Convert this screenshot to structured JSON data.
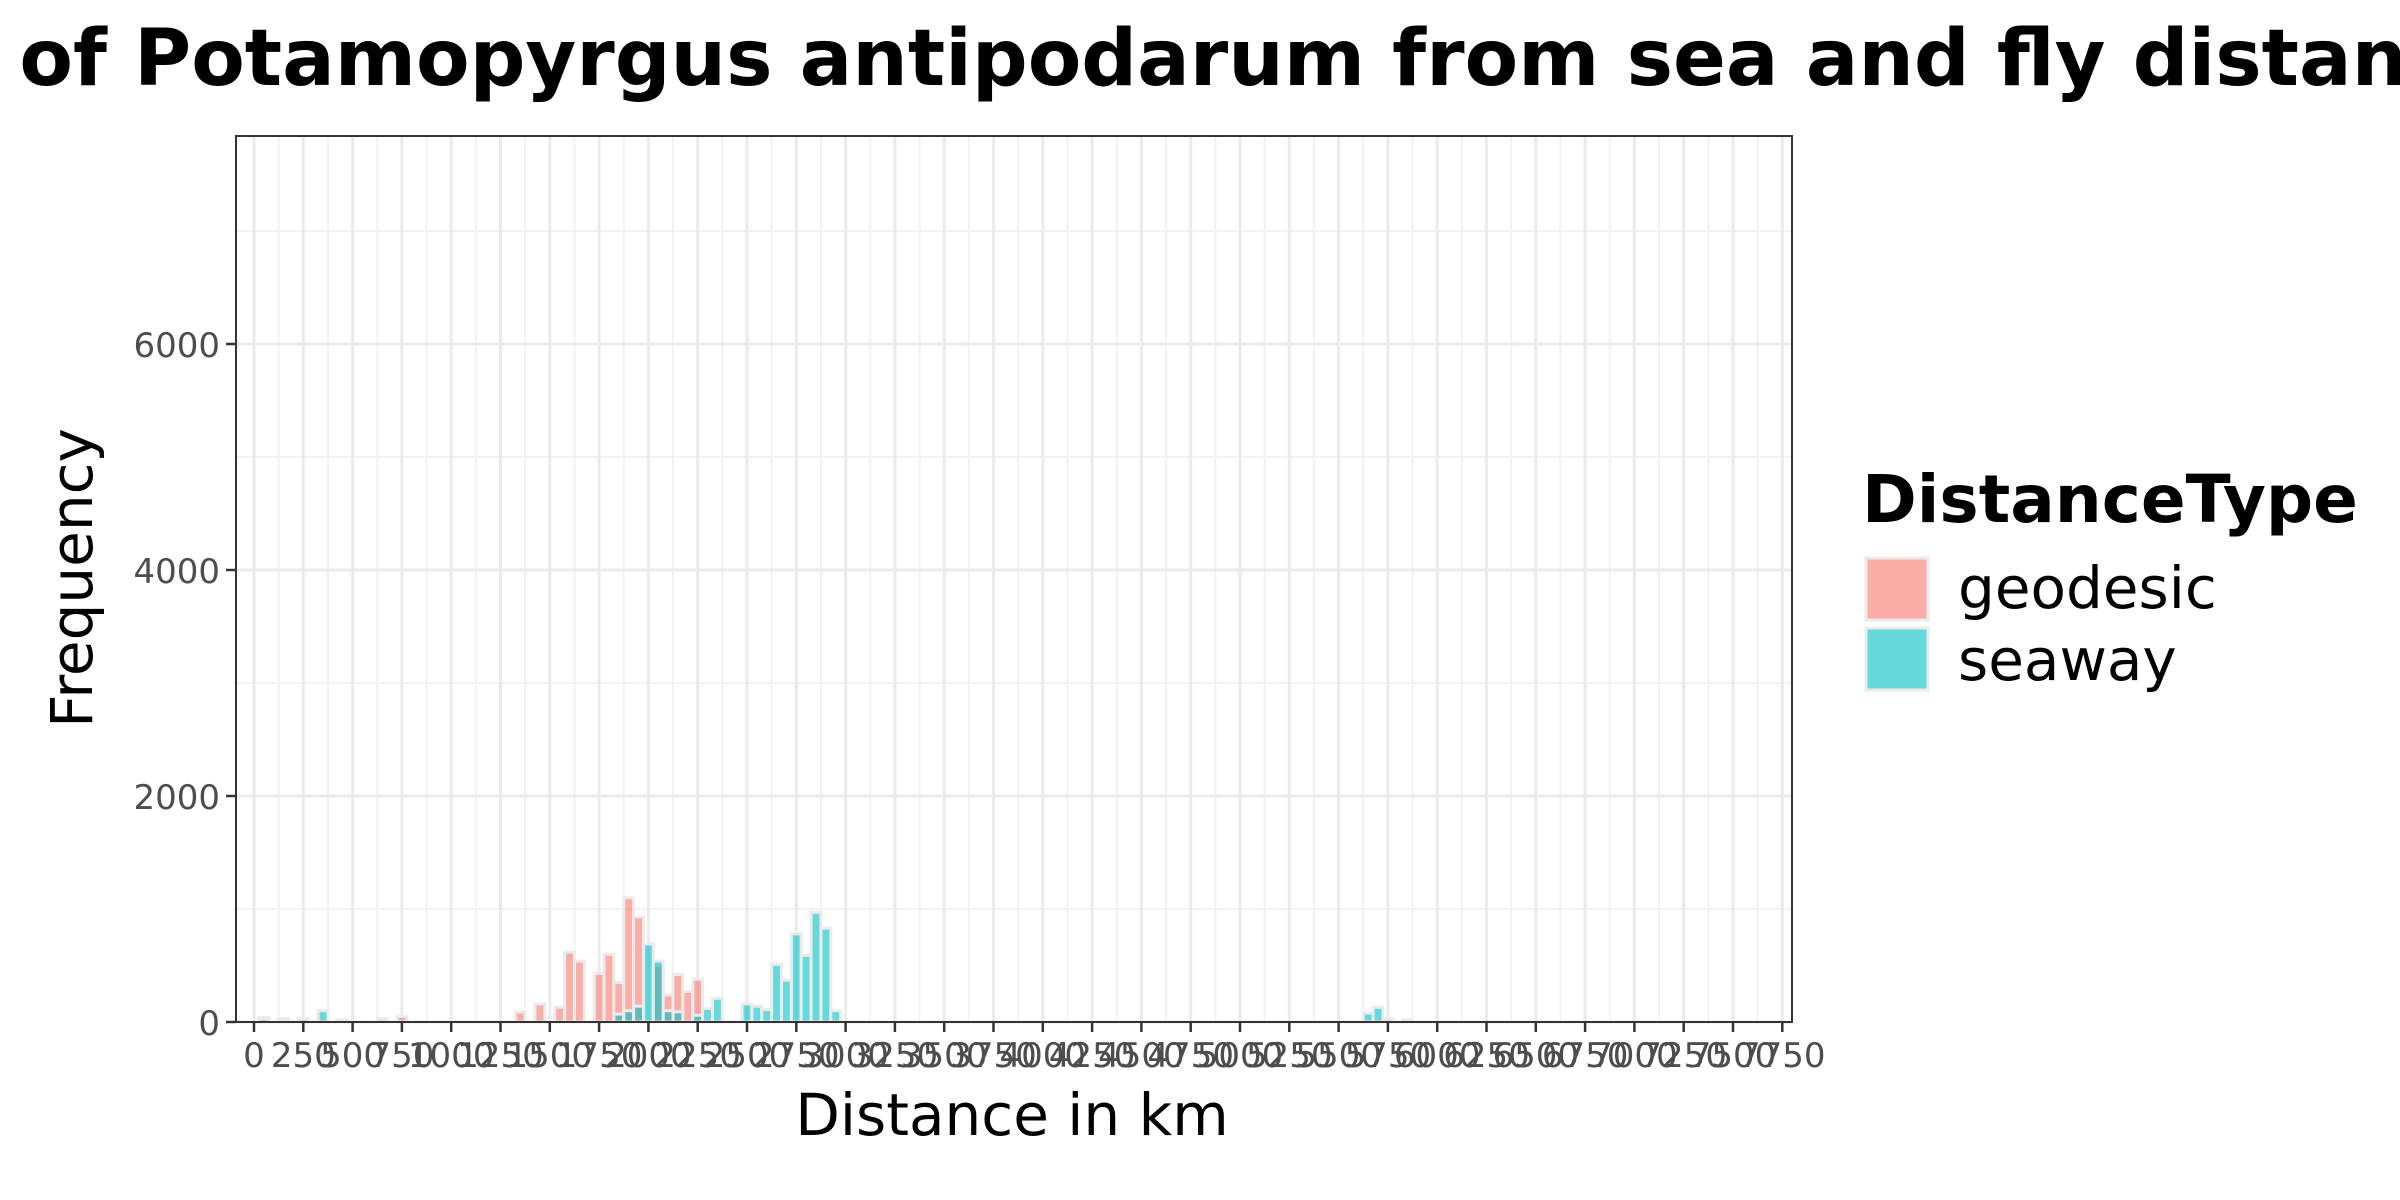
{
  "chart_data": {
    "type": "bar",
    "title": "Distribution of Potamopyrgus antipodarum from sea and fly distances",
    "xlabel": "Distance in km",
    "ylabel": "Frequency",
    "xlim": [
      0,
      7750
    ],
    "ylim": [
      0,
      7500
    ],
    "bin_width": 100,
    "x_ticks": [
      0,
      250,
      500,
      750,
      1000,
      1250,
      1500,
      1750,
      2000,
      2250,
      2500,
      2750,
      3000,
      3250,
      3500,
      3750,
      4000,
      4250,
      4500,
      4750,
      5000,
      5250,
      5500,
      5750,
      6000,
      6250,
      6500,
      6750,
      7000,
      7250,
      7500,
      7750
    ],
    "x_tick_labels": [
      "0",
      "250",
      "500",
      "750",
      "1000",
      "1250",
      "1500",
      "1750",
      "2000",
      "2250",
      "2500",
      "2750",
      "3000",
      "3250",
      "3500",
      "3750",
      "4000",
      "4250",
      "4500",
      "4750",
      "5000",
      "5250",
      "5500",
      "5750",
      "6000",
      "6250",
      "6500",
      "6750",
      "7000",
      "7250",
      "7500",
      "7750"
    ],
    "y_ticks": [
      0,
      2000,
      4000,
      6000
    ],
    "y_tick_labels": [
      "0",
      "2000",
      "4000",
      "6000"
    ],
    "legend": {
      "title": "DistanceType",
      "position": "right"
    },
    "grid": true,
    "series": [
      {
        "name": "geodesic",
        "color": "#F8766D",
        "points": [
          {
            "x": 50,
            "y": 40
          },
          {
            "x": 150,
            "y": 30
          },
          {
            "x": 450,
            "y": 20
          },
          {
            "x": 650,
            "y": 30
          },
          {
            "x": 750,
            "y": 50
          },
          {
            "x": 1350,
            "y": 90
          },
          {
            "x": 1450,
            "y": 160
          },
          {
            "x": 1550,
            "y": 130
          },
          {
            "x": 1600,
            "y": 620
          },
          {
            "x": 1650,
            "y": 540
          },
          {
            "x": 1750,
            "y": 430
          },
          {
            "x": 1800,
            "y": 600
          },
          {
            "x": 1850,
            "y": 350
          },
          {
            "x": 1900,
            "y": 1100
          },
          {
            "x": 1950,
            "y": 930
          },
          {
            "x": 2050,
            "y": 500
          },
          {
            "x": 2100,
            "y": 240
          },
          {
            "x": 2150,
            "y": 420
          },
          {
            "x": 2200,
            "y": 270
          },
          {
            "x": 2250,
            "y": 380
          },
          {
            "x": 5750,
            "y": 30
          },
          {
            "x": 5850,
            "y": 20
          }
        ]
      },
      {
        "name": "seaway",
        "color": "#00BFC4",
        "points": [
          {
            "x": 50,
            "y": 30
          },
          {
            "x": 150,
            "y": 20
          },
          {
            "x": 250,
            "y": 30
          },
          {
            "x": 350,
            "y": 100
          },
          {
            "x": 1850,
            "y": 70
          },
          {
            "x": 1900,
            "y": 100
          },
          {
            "x": 1950,
            "y": 140
          },
          {
            "x": 2000,
            "y": 690
          },
          {
            "x": 2050,
            "y": 540
          },
          {
            "x": 2100,
            "y": 100
          },
          {
            "x": 2150,
            "y": 90
          },
          {
            "x": 2250,
            "y": 60
          },
          {
            "x": 2300,
            "y": 120
          },
          {
            "x": 2350,
            "y": 210
          },
          {
            "x": 2500,
            "y": 160
          },
          {
            "x": 2550,
            "y": 140
          },
          {
            "x": 2600,
            "y": 110
          },
          {
            "x": 2650,
            "y": 510
          },
          {
            "x": 2700,
            "y": 370
          },
          {
            "x": 2750,
            "y": 780
          },
          {
            "x": 2800,
            "y": 590
          },
          {
            "x": 2850,
            "y": 970
          },
          {
            "x": 2900,
            "y": 830
          },
          {
            "x": 2950,
            "y": 100
          },
          {
            "x": 5650,
            "y": 80
          },
          {
            "x": 5700,
            "y": 130
          }
        ]
      }
    ]
  }
}
